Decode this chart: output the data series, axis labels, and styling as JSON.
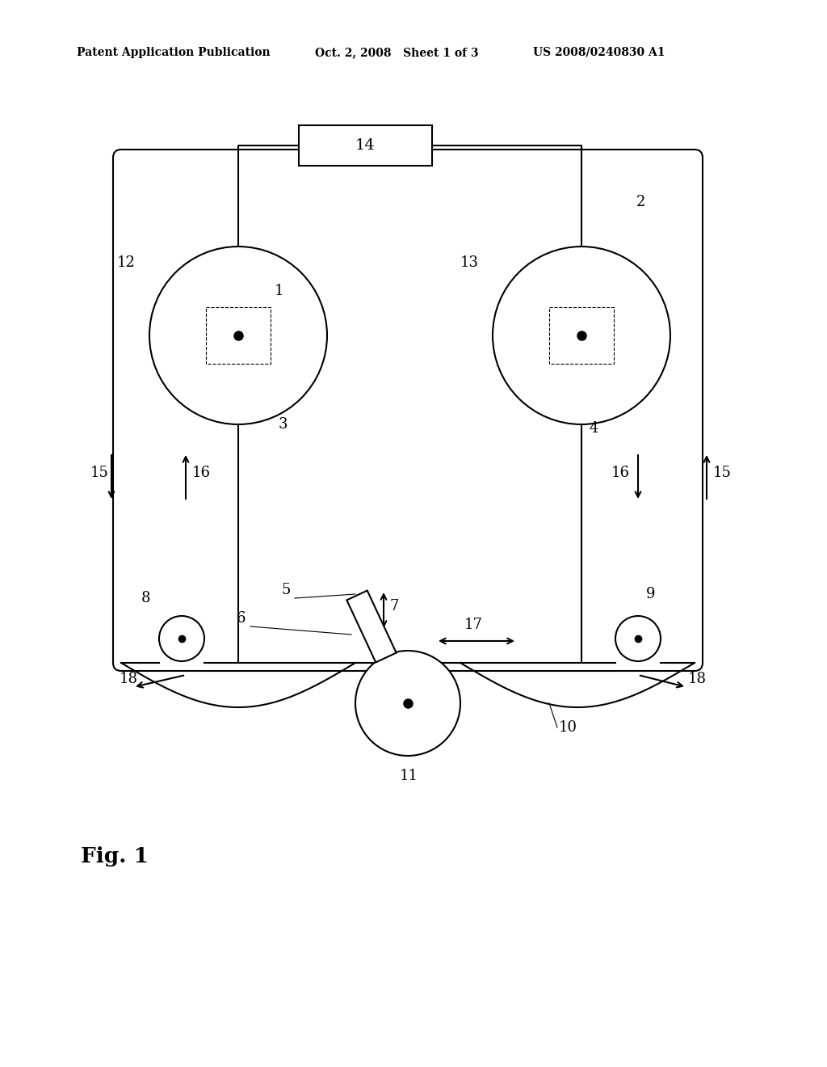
{
  "bg_color": "#ffffff",
  "header_left": "Patent Application Publication",
  "header_mid": "Oct. 2, 2008   Sheet 1 of 3",
  "header_right": "US 2008/0240830 A1",
  "fig_label": "Fig. 1",
  "line_color": "#000000",
  "lw": 1.5
}
